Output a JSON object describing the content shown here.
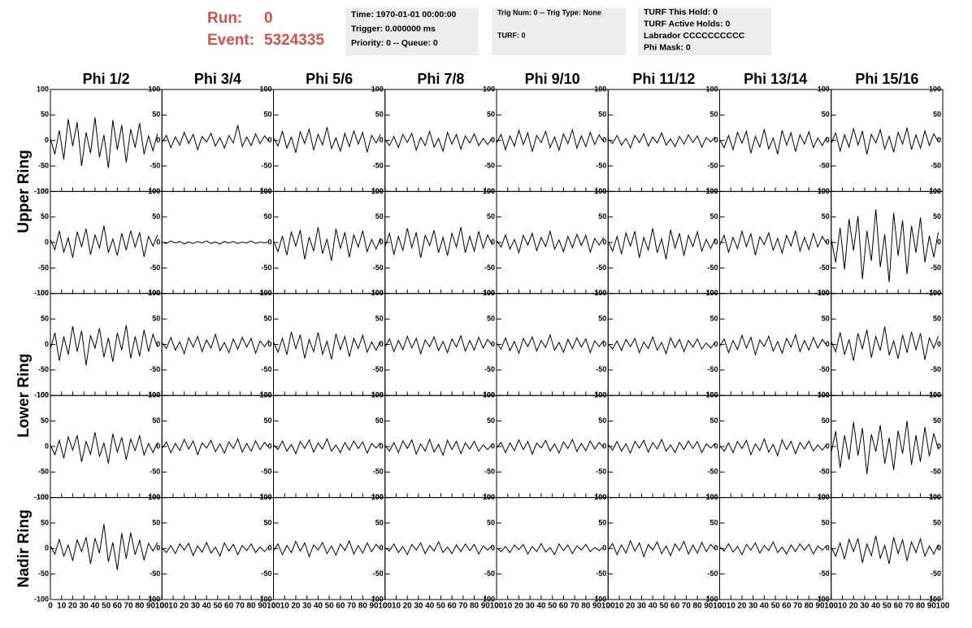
{
  "header": {
    "run_label": "Run:",
    "run": "0",
    "event_label": "Event:",
    "event": "5324335",
    "time_box": [
      "Time: 1970-01-01 00:00:00",
      "Trigger: 0.000000 ms",
      "Priority: 0 -- Queue: 0"
    ],
    "trig_box": [
      "Trig Num: 0 -- Trig Type: None",
      "TURF: 0"
    ],
    "turf_box": [
      "TURF This Hold: 0",
      "TURF Active Holds: 0",
      "Labrador CCCCCCCCCC",
      "Phi Mask: 0"
    ]
  },
  "chart_data": {
    "type": "line",
    "color": "#000000",
    "columns": [
      "Phi 1/2",
      "Phi 3/4",
      "Phi 5/6",
      "Phi 7/8",
      "Phi 9/10",
      "Phi 11/12",
      "Phi 13/14",
      "Phi 15/16"
    ],
    "ring_labels": [
      "Upper Ring",
      "Lower Ring",
      "Nadir Ring"
    ],
    "xlim": [
      0,
      100
    ],
    "ylim": [
      -100,
      100
    ],
    "xticks": [
      0,
      10,
      20,
      30,
      40,
      50,
      60,
      70,
      80,
      90,
      100
    ],
    "yticks": [
      -100,
      -50,
      0,
      50,
      100
    ],
    "x": [
      0,
      4,
      8,
      12,
      16,
      20,
      24,
      28,
      32,
      36,
      40,
      44,
      48,
      52,
      56,
      60,
      64,
      68,
      72,
      76,
      80,
      84,
      88,
      92,
      96
    ],
    "panels": [
      [
        [
          4,
          -27,
          20,
          -37,
          42,
          -11,
          36,
          -50,
          16,
          -25,
          45,
          -33,
          11,
          -54,
          40,
          -18,
          30,
          -43,
          22,
          -14,
          34,
          -27,
          9,
          -20,
          13
        ],
        [
          -4,
          10,
          -14,
          7,
          -9,
          16,
          -6,
          12,
          -18,
          8,
          -3,
          14,
          -11,
          6,
          -15,
          10,
          -5,
          30,
          -12,
          7,
          -10,
          13,
          -6,
          9,
          -2
        ],
        [
          5,
          -11,
          18,
          -15,
          7,
          -24,
          17,
          -6,
          22,
          -19,
          12,
          -9,
          26,
          -16,
          5,
          -21,
          14,
          -12,
          19,
          -7,
          16,
          -23,
          10,
          -5,
          12
        ],
        [
          2,
          -10,
          8,
          -14,
          12,
          -4,
          14,
          -19,
          6,
          -10,
          18,
          -13,
          4,
          -21,
          16,
          -7,
          12,
          -17,
          9,
          -5,
          13,
          -10,
          4,
          -8,
          5
        ],
        [
          -5,
          12,
          -18,
          9,
          -11,
          20,
          -8,
          15,
          -22,
          10,
          -4,
          18,
          -14,
          7,
          -19,
          13,
          -6,
          21,
          -15,
          9,
          -12,
          16,
          -8,
          11,
          -3
        ],
        [
          3,
          -6,
          10,
          -9,
          4,
          -14,
          10,
          -4,
          13,
          -11,
          7,
          -5,
          15,
          -9,
          3,
          -12,
          8,
          -7,
          11,
          -4,
          9,
          -13,
          6,
          -3,
          7
        ],
        [
          2,
          -14,
          10,
          -18,
          16,
          -5,
          18,
          -25,
          8,
          -13,
          22,
          -17,
          5,
          -27,
          20,
          -9,
          15,
          -22,
          11,
          -7,
          17,
          -14,
          5,
          -10,
          7
        ],
        [
          -6,
          15,
          -21,
          11,
          -13,
          24,
          -9,
          18,
          -27,
          12,
          -5,
          21,
          -17,
          8,
          -23,
          16,
          -7,
          25,
          -18,
          11,
          -15,
          19,
          -10,
          13,
          -3
        ]
      ],
      [
        [
          6,
          -14,
          23,
          -19,
          9,
          -30,
          21,
          -8,
          27,
          -24,
          15,
          -11,
          33,
          -20,
          7,
          -26,
          18,
          -15,
          23,
          -9,
          20,
          -28,
          12,
          -7,
          15
        ],
        [
          1,
          -2,
          3,
          -1,
          2,
          -3,
          1,
          -2,
          2,
          -1,
          3,
          -2,
          1,
          -3,
          2,
          -1,
          2,
          -2,
          1,
          -1,
          3,
          -2,
          1,
          -1,
          2
        ],
        [
          3,
          -18,
          13,
          -25,
          21,
          -7,
          24,
          -33,
          11,
          -17,
          30,
          -22,
          7,
          -36,
          27,
          -12,
          20,
          -29,
          15,
          -9,
          23,
          -18,
          6,
          -13,
          9
        ],
        [
          -8,
          18,
          -24,
          12,
          -16,
          28,
          -10,
          20,
          -30,
          14,
          -6,
          24,
          -20,
          10,
          -26,
          18,
          -9,
          30,
          -20,
          12,
          -17,
          22,
          -11,
          15,
          -4
        ],
        [
          4,
          -9,
          15,
          -13,
          6,
          -20,
          14,
          -5,
          18,
          -16,
          10,
          -8,
          22,
          -13,
          5,
          -18,
          12,
          -10,
          16,
          -6,
          14,
          -19,
          8,
          -5,
          10
        ],
        [
          3,
          -17,
          12,
          -23,
          19,
          -7,
          22,
          -30,
          10,
          -15,
          28,
          -20,
          7,
          -33,
          25,
          -11,
          18,
          -26,
          14,
          -8,
          21,
          -17,
          6,
          -12,
          8
        ],
        [
          -6,
          14,
          -19,
          10,
          -12,
          22,
          -8,
          17,
          -25,
          11,
          -4,
          19,
          -15,
          8,
          -21,
          14,
          -7,
          23,
          -17,
          10,
          -14,
          18,
          -9,
          12,
          -3
        ],
        [
          7,
          -39,
          29,
          -53,
          46,
          -16,
          52,
          -72,
          23,
          -36,
          65,
          -48,
          16,
          -78,
          58,
          -26,
          43,
          -62,
          33,
          -20,
          49,
          -39,
          13,
          -29,
          20
        ]
      ],
      [
        [
          -9,
          23,
          -32,
          16,
          -20,
          36,
          -14,
          27,
          -41,
          18,
          -7,
          32,
          -25,
          13,
          -34,
          23,
          -11,
          38,
          -27,
          16,
          -23,
          29,
          -14,
          20,
          -5
        ],
        [
          4,
          -8,
          14,
          -11,
          5,
          -18,
          13,
          -5,
          16,
          -14,
          9,
          -7,
          20,
          -12,
          4,
          -16,
          11,
          -9,
          14,
          -5,
          12,
          -17,
          7,
          -4,
          9
        ],
        [
          5,
          -15,
          12,
          -20,
          25,
          -8,
          19,
          -27,
          10,
          -14,
          24,
          -19,
          6,
          -29,
          21,
          -10,
          16,
          -24,
          12,
          -8,
          18,
          -15,
          5,
          -11,
          7
        ],
        [
          -5,
          11,
          -14,
          8,
          -10,
          16,
          -7,
          12,
          -18,
          9,
          -4,
          15,
          -12,
          6,
          -16,
          11,
          -5,
          17,
          -13,
          8,
          -11,
          14,
          -7,
          10,
          -2
        ],
        [
          3,
          -9,
          13,
          -12,
          6,
          -17,
          12,
          -4,
          15,
          -13,
          8,
          -6,
          19,
          -11,
          4,
          -15,
          10,
          -8,
          13,
          -5,
          11,
          -16,
          7,
          -4,
          8
        ],
        [
          2,
          -9,
          7,
          -12,
          10,
          -4,
          12,
          -16,
          5,
          -8,
          15,
          -11,
          4,
          -18,
          13,
          -6,
          10,
          -14,
          8,
          -5,
          11,
          -9,
          3,
          -7,
          5
        ],
        [
          -4,
          11,
          -16,
          8,
          -10,
          18,
          -7,
          14,
          -20,
          9,
          -4,
          16,
          -13,
          6,
          -17,
          12,
          -5,
          19,
          -14,
          8,
          -11,
          14,
          -7,
          10,
          -2
        ],
        [
          6,
          -14,
          24,
          -20,
          10,
          -32,
          22,
          -8,
          29,
          -26,
          16,
          -12,
          35,
          -21,
          7,
          -28,
          19,
          -16,
          25,
          -10,
          22,
          -30,
          13,
          -7,
          16
        ]
      ],
      [
        [
          3,
          -16,
          12,
          -23,
          19,
          -7,
          22,
          -30,
          10,
          -15,
          28,
          -20,
          7,
          -33,
          25,
          -11,
          18,
          -26,
          14,
          -8,
          21,
          -17,
          6,
          -12,
          8
        ],
        [
          -4,
          9,
          -12,
          6,
          -8,
          14,
          -5,
          11,
          -16,
          7,
          -3,
          12,
          -10,
          5,
          -13,
          9,
          -4,
          15,
          -11,
          6,
          -9,
          11,
          -6,
          8,
          -2
        ],
        [
          3,
          -6,
          11,
          -9,
          4,
          -14,
          10,
          -4,
          13,
          -11,
          7,
          -5,
          15,
          -9,
          3,
          -12,
          8,
          -7,
          11,
          -4,
          9,
          -13,
          6,
          -3,
          7
        ],
        [
          2,
          -9,
          8,
          -12,
          11,
          -4,
          13,
          -15,
          5,
          -9,
          14,
          -11,
          4,
          -17,
          12,
          -6,
          10,
          -14,
          7,
          -5,
          10,
          -9,
          3,
          -6,
          4
        ],
        [
          -3,
          8,
          -12,
          7,
          -8,
          13,
          -6,
          10,
          -15,
          7,
          -3,
          12,
          -9,
          5,
          -13,
          9,
          -4,
          14,
          -10,
          6,
          -8,
          11,
          -5,
          8,
          -2
        ],
        [
          4,
          -7,
          10,
          -9,
          5,
          -13,
          10,
          -3,
          12,
          -11,
          8,
          -5,
          14,
          -9,
          3,
          -12,
          8,
          -6,
          11,
          -4,
          10,
          -12,
          5,
          -3,
          6
        ],
        [
          2,
          -9,
          7,
          -12,
          10,
          -4,
          12,
          -16,
          5,
          -8,
          15,
          -11,
          4,
          -18,
          13,
          -6,
          10,
          -14,
          8,
          -5,
          11,
          -9,
          3,
          -7,
          5
        ],
        [
          -12,
          30,
          -42,
          22,
          -26,
          48,
          -18,
          36,
          -54,
          24,
          -10,
          42,
          -34,
          17,
          -46,
          31,
          -14,
          50,
          -36,
          22,
          -30,
          38,
          -19,
          26,
          -6
        ]
      ],
      [
        [
          5,
          -11,
          18,
          -15,
          7,
          -24,
          17,
          -6,
          22,
          -30,
          20,
          -9,
          48,
          -26,
          12,
          -42,
          30,
          -20,
          31,
          -12,
          16,
          -23,
          10,
          -5,
          12
        ],
        [
          1,
          -8,
          6,
          -10,
          9,
          -3,
          10,
          -14,
          5,
          -7,
          12,
          -9,
          3,
          -15,
          11,
          -5,
          8,
          -12,
          6,
          -4,
          9,
          -8,
          3,
          -6,
          4
        ],
        [
          -4,
          9,
          -12,
          6,
          -8,
          14,
          -5,
          11,
          -16,
          7,
          -3,
          12,
          -10,
          5,
          -13,
          9,
          -4,
          15,
          -11,
          6,
          -9,
          11,
          -6,
          8,
          -2
        ],
        [
          2,
          -5,
          9,
          -8,
          4,
          -12,
          8,
          -3,
          11,
          -10,
          6,
          -5,
          13,
          -8,
          3,
          -10,
          7,
          -6,
          9,
          -4,
          8,
          -11,
          5,
          -3,
          6
        ],
        [
          1,
          -6,
          4,
          -8,
          7,
          -2,
          8,
          -11,
          4,
          -6,
          10,
          -7,
          2,
          -12,
          9,
          -4,
          7,
          -10,
          5,
          -3,
          8,
          -6,
          2,
          -4,
          3
        ],
        [
          -3,
          10,
          -12,
          7,
          -9,
          15,
          -5,
          11,
          -16,
          8,
          -3,
          13,
          -10,
          5,
          -14,
          9,
          -4,
          14,
          -11,
          7,
          -9,
          12,
          -6,
          8,
          -2
        ],
        [
          3,
          -5,
          9,
          -7,
          4,
          -12,
          8,
          -3,
          11,
          -9,
          6,
          -4,
          13,
          -8,
          3,
          -11,
          7,
          -6,
          9,
          -3,
          8,
          -11,
          5,
          -3,
          6
        ],
        [
          3,
          -15,
          11,
          -21,
          18,
          -6,
          20,
          -28,
          9,
          -14,
          25,
          -19,
          6,
          -30,
          22,
          -10,
          17,
          -24,
          13,
          -8,
          19,
          -15,
          5,
          -11,
          8
        ]
      ]
    ]
  }
}
